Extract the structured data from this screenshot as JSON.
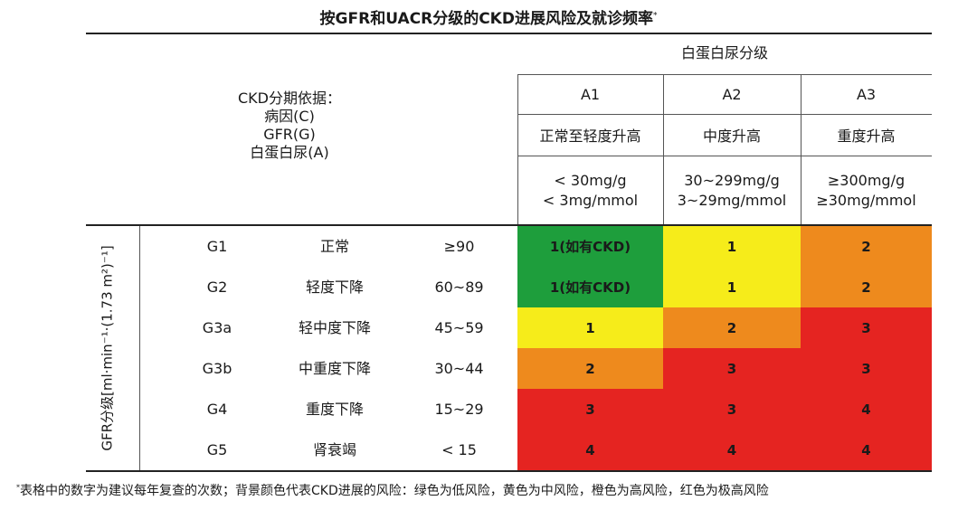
{
  "title": "按GFR和UACR分级的CKD进展风险及就诊频率",
  "title_mark": "*",
  "albuminuria_header": "白蛋白尿分级",
  "criteria_lines": [
    "CKD分期依据：",
    "病因(C)",
    "GFR(G)",
    "白蛋白尿(A)"
  ],
  "a_columns": [
    {
      "code": "A1",
      "name": "正常至轻度升高",
      "range1": "< 30mg/g",
      "range2": "< 3mg/mmol"
    },
    {
      "code": "A2",
      "name": "中度升高",
      "range1": "30~299mg/g",
      "range2": "3~29mg/mmol"
    },
    {
      "code": "A3",
      "name": "重度升高",
      "range1": "≥300mg/g",
      "range2": "≥30mg/mmol"
    }
  ],
  "gfr_axis_label": "GFR分级[ml·min⁻¹·(1.73 m²)⁻¹]",
  "rows": [
    {
      "stage": "G1",
      "desc": "正常",
      "range": "≥90",
      "cells": [
        "1(如有CKD)",
        "1",
        "2"
      ],
      "colors": [
        "green",
        "yellow",
        "orange"
      ]
    },
    {
      "stage": "G2",
      "desc": "轻度下降",
      "range": "60~89",
      "cells": [
        "1(如有CKD)",
        "1",
        "2"
      ],
      "colors": [
        "green",
        "yellow",
        "orange"
      ]
    },
    {
      "stage": "G3a",
      "desc": "轻中度下降",
      "range": "45~59",
      "cells": [
        "1",
        "2",
        "3"
      ],
      "colors": [
        "yellow",
        "orange",
        "red"
      ]
    },
    {
      "stage": "G3b",
      "desc": "中重度下降",
      "range": "30~44",
      "cells": [
        "2",
        "3",
        "3"
      ],
      "colors": [
        "orange",
        "red",
        "red"
      ]
    },
    {
      "stage": "G4",
      "desc": "重度下降",
      "range": "15~29",
      "cells": [
        "3",
        "3",
        "4"
      ],
      "colors": [
        "red",
        "red",
        "red"
      ]
    },
    {
      "stage": "G5",
      "desc": "肾衰竭",
      "range": "< 15",
      "cells": [
        "4",
        "4",
        "4"
      ],
      "colors": [
        "red",
        "red",
        "red"
      ]
    }
  ],
  "palette": {
    "green": "#1e9e3c",
    "yellow": "#f6ec1a",
    "orange": "#ee8a1d",
    "red": "#e52421"
  },
  "footnote_mark": "*",
  "footnote": "表格中的数字为建议每年复查的次数；背景颜色代表CKD进展的风险：绿色为低风险，黄色为中风险，橙色为高风险，红色为极高风险"
}
